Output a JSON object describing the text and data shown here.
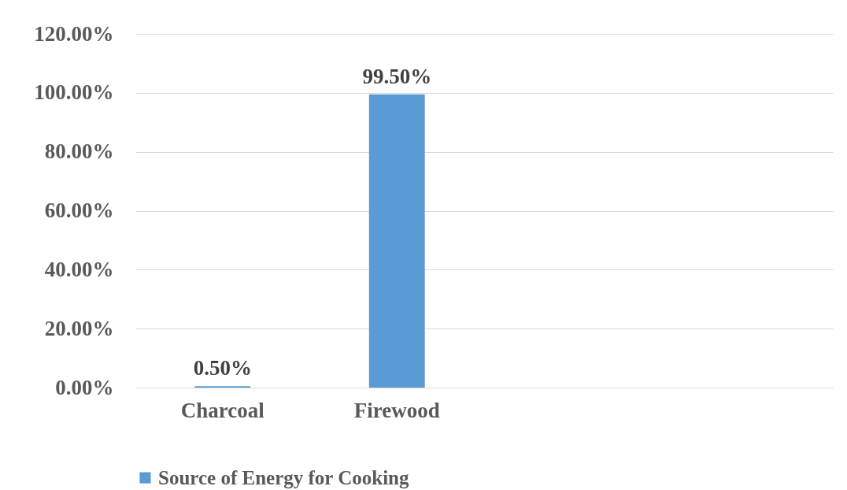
{
  "chart_data": {
    "type": "bar",
    "categories": [
      "Charcoal",
      "Firewood",
      null,
      null
    ],
    "series": [
      {
        "name": "Source of Energy for Cooking",
        "color": "#5b9bd5",
        "values": [
          0.5,
          99.5,
          null,
          null
        ],
        "value_labels": [
          "0.50%",
          "99.50%",
          null,
          null
        ]
      }
    ],
    "ylim": [
      0,
      120
    ],
    "yticks": [
      {
        "value": 0,
        "label": "0.00%"
      },
      {
        "value": 20,
        "label": "20.00%"
      },
      {
        "value": 40,
        "label": "40.00%"
      },
      {
        "value": 60,
        "label": "60.00%"
      },
      {
        "value": 80,
        "label": "80.00%"
      },
      {
        "value": 100,
        "label": "100.00%"
      },
      {
        "value": 120,
        "label": "120.00%"
      }
    ],
    "grid": "y",
    "legend": "bottom"
  }
}
